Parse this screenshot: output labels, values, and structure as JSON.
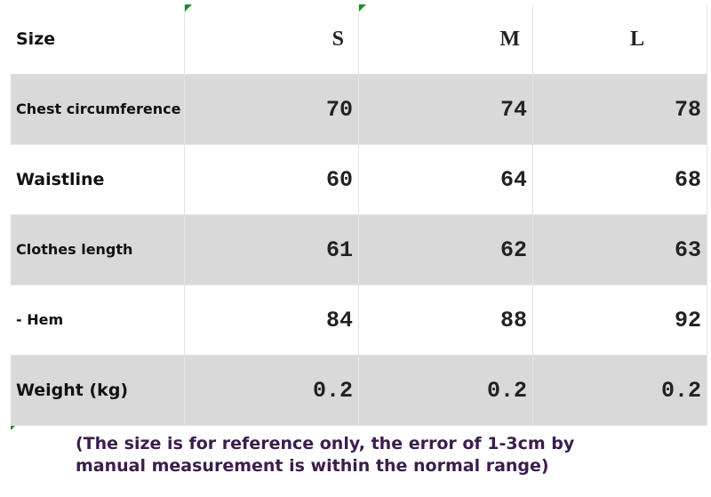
{
  "table": {
    "header": [
      "Size",
      "S",
      "M",
      "L"
    ],
    "rows": [
      [
        "Chest circumference",
        "70",
        "74",
        "78"
      ],
      [
        "Waistline",
        "60",
        "64",
        "68"
      ],
      [
        "Clothes length",
        "61",
        "62",
        "63"
      ],
      [
        "- Hem",
        "84",
        "88",
        "92"
      ],
      [
        "Weight (kg)",
        "0.2",
        "0.2",
        "0.2"
      ]
    ]
  },
  "note": "(The size is for reference only, the error of 1-3cm by manual measurement is within the normal range)"
}
